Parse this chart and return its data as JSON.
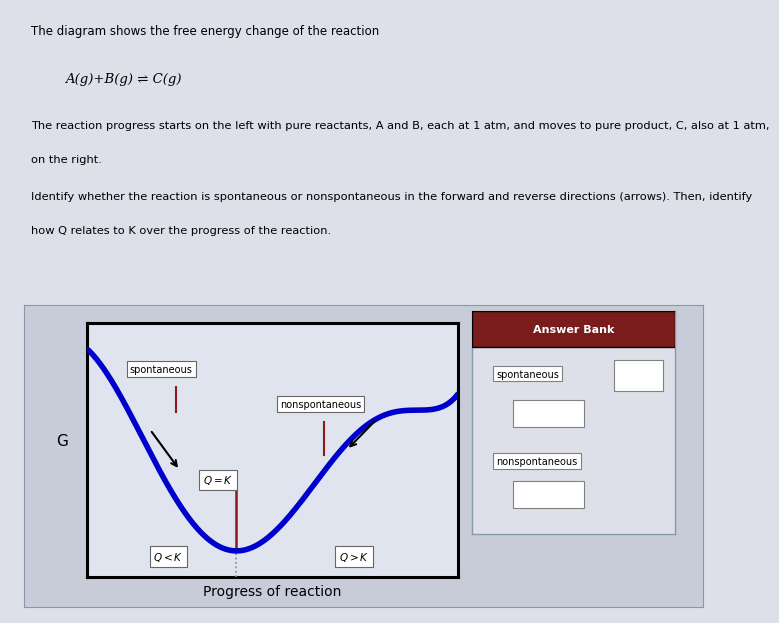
{
  "title_text": "The diagram shows the free energy change of the reaction",
  "equation": "A(g)+B(g) ⇌ C(g)",
  "para1": "The reaction progress starts on the left with pure reactants, A and B, each at 1 atm, and moves to pure product, C, also at 1 atm,",
  "para1b": "on the right.",
  "para2": "Identify whether the reaction is spontaneous or nonspontaneous in the forward and reverse directions (arrows). Then, identify",
  "para2b": "how Q relates to K over the progress of the reaction.",
  "xlabel": "Progress of reaction",
  "ylabel": "G",
  "page_bg": "#dde0e8",
  "text_bg": "#dde0e8",
  "outer_panel_bg": "#c8ccd8",
  "inner_graph_bg": "#e0e4ee",
  "answer_bank_bg": "#dde0e8",
  "answer_bank_header_color": "#7a1c1c",
  "answer_bank_header_text": "Answer Bank",
  "curve_color": "#0000cc",
  "arrow_color": "#000000",
  "red_line_color": "#8b1a1a",
  "dashed_line_color": "#888888",
  "box_edge_color": "#666666",
  "box_face_color": "#ffffff",
  "border_left_color": "#1a3a6b"
}
